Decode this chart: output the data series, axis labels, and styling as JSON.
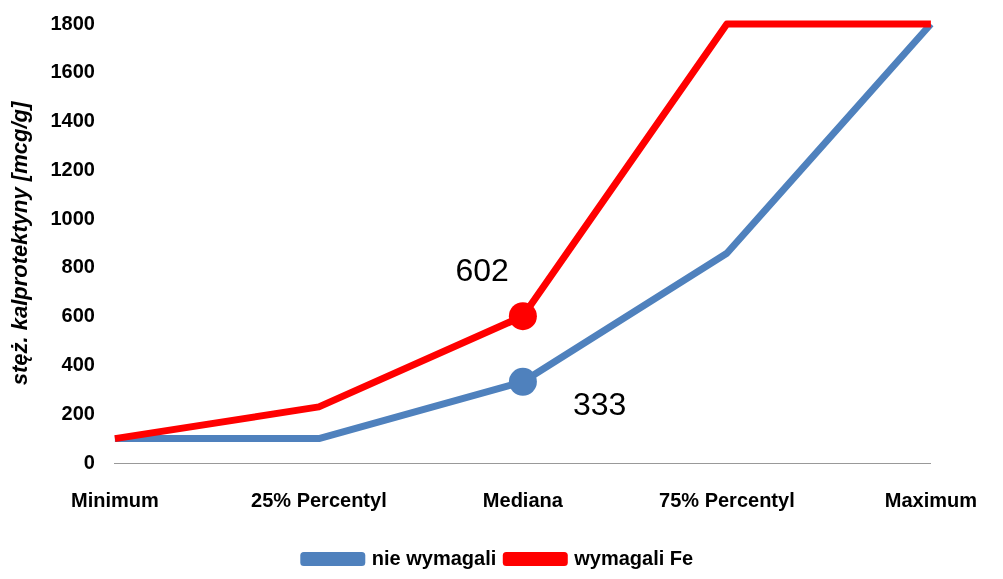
{
  "chart_data": {
    "type": "line",
    "ylabel": "stęż. kalprotektyny [mcg/g]",
    "categories": [
      "Minimum",
      "25% Percentyl",
      "Mediana",
      "75% Percentyl",
      "Maximum"
    ],
    "ylim": [
      0,
      1800
    ],
    "yticks": [
      0,
      200,
      400,
      600,
      800,
      1000,
      1200,
      1400,
      1600,
      1800
    ],
    "grid": false,
    "legend": "bottom",
    "series": [
      {
        "name": "nie wymagali",
        "color": "#4f81bd",
        "values": [
          100,
          100,
          333,
          860,
          1800
        ],
        "value_labels": [
          null,
          null,
          "333",
          null,
          null
        ]
      },
      {
        "name": "wymagali Fe",
        "color": "#ff0000",
        "values": [
          100,
          230,
          602,
          1800,
          1800
        ],
        "value_labels": [
          null,
          null,
          "602",
          null,
          null
        ]
      }
    ]
  }
}
